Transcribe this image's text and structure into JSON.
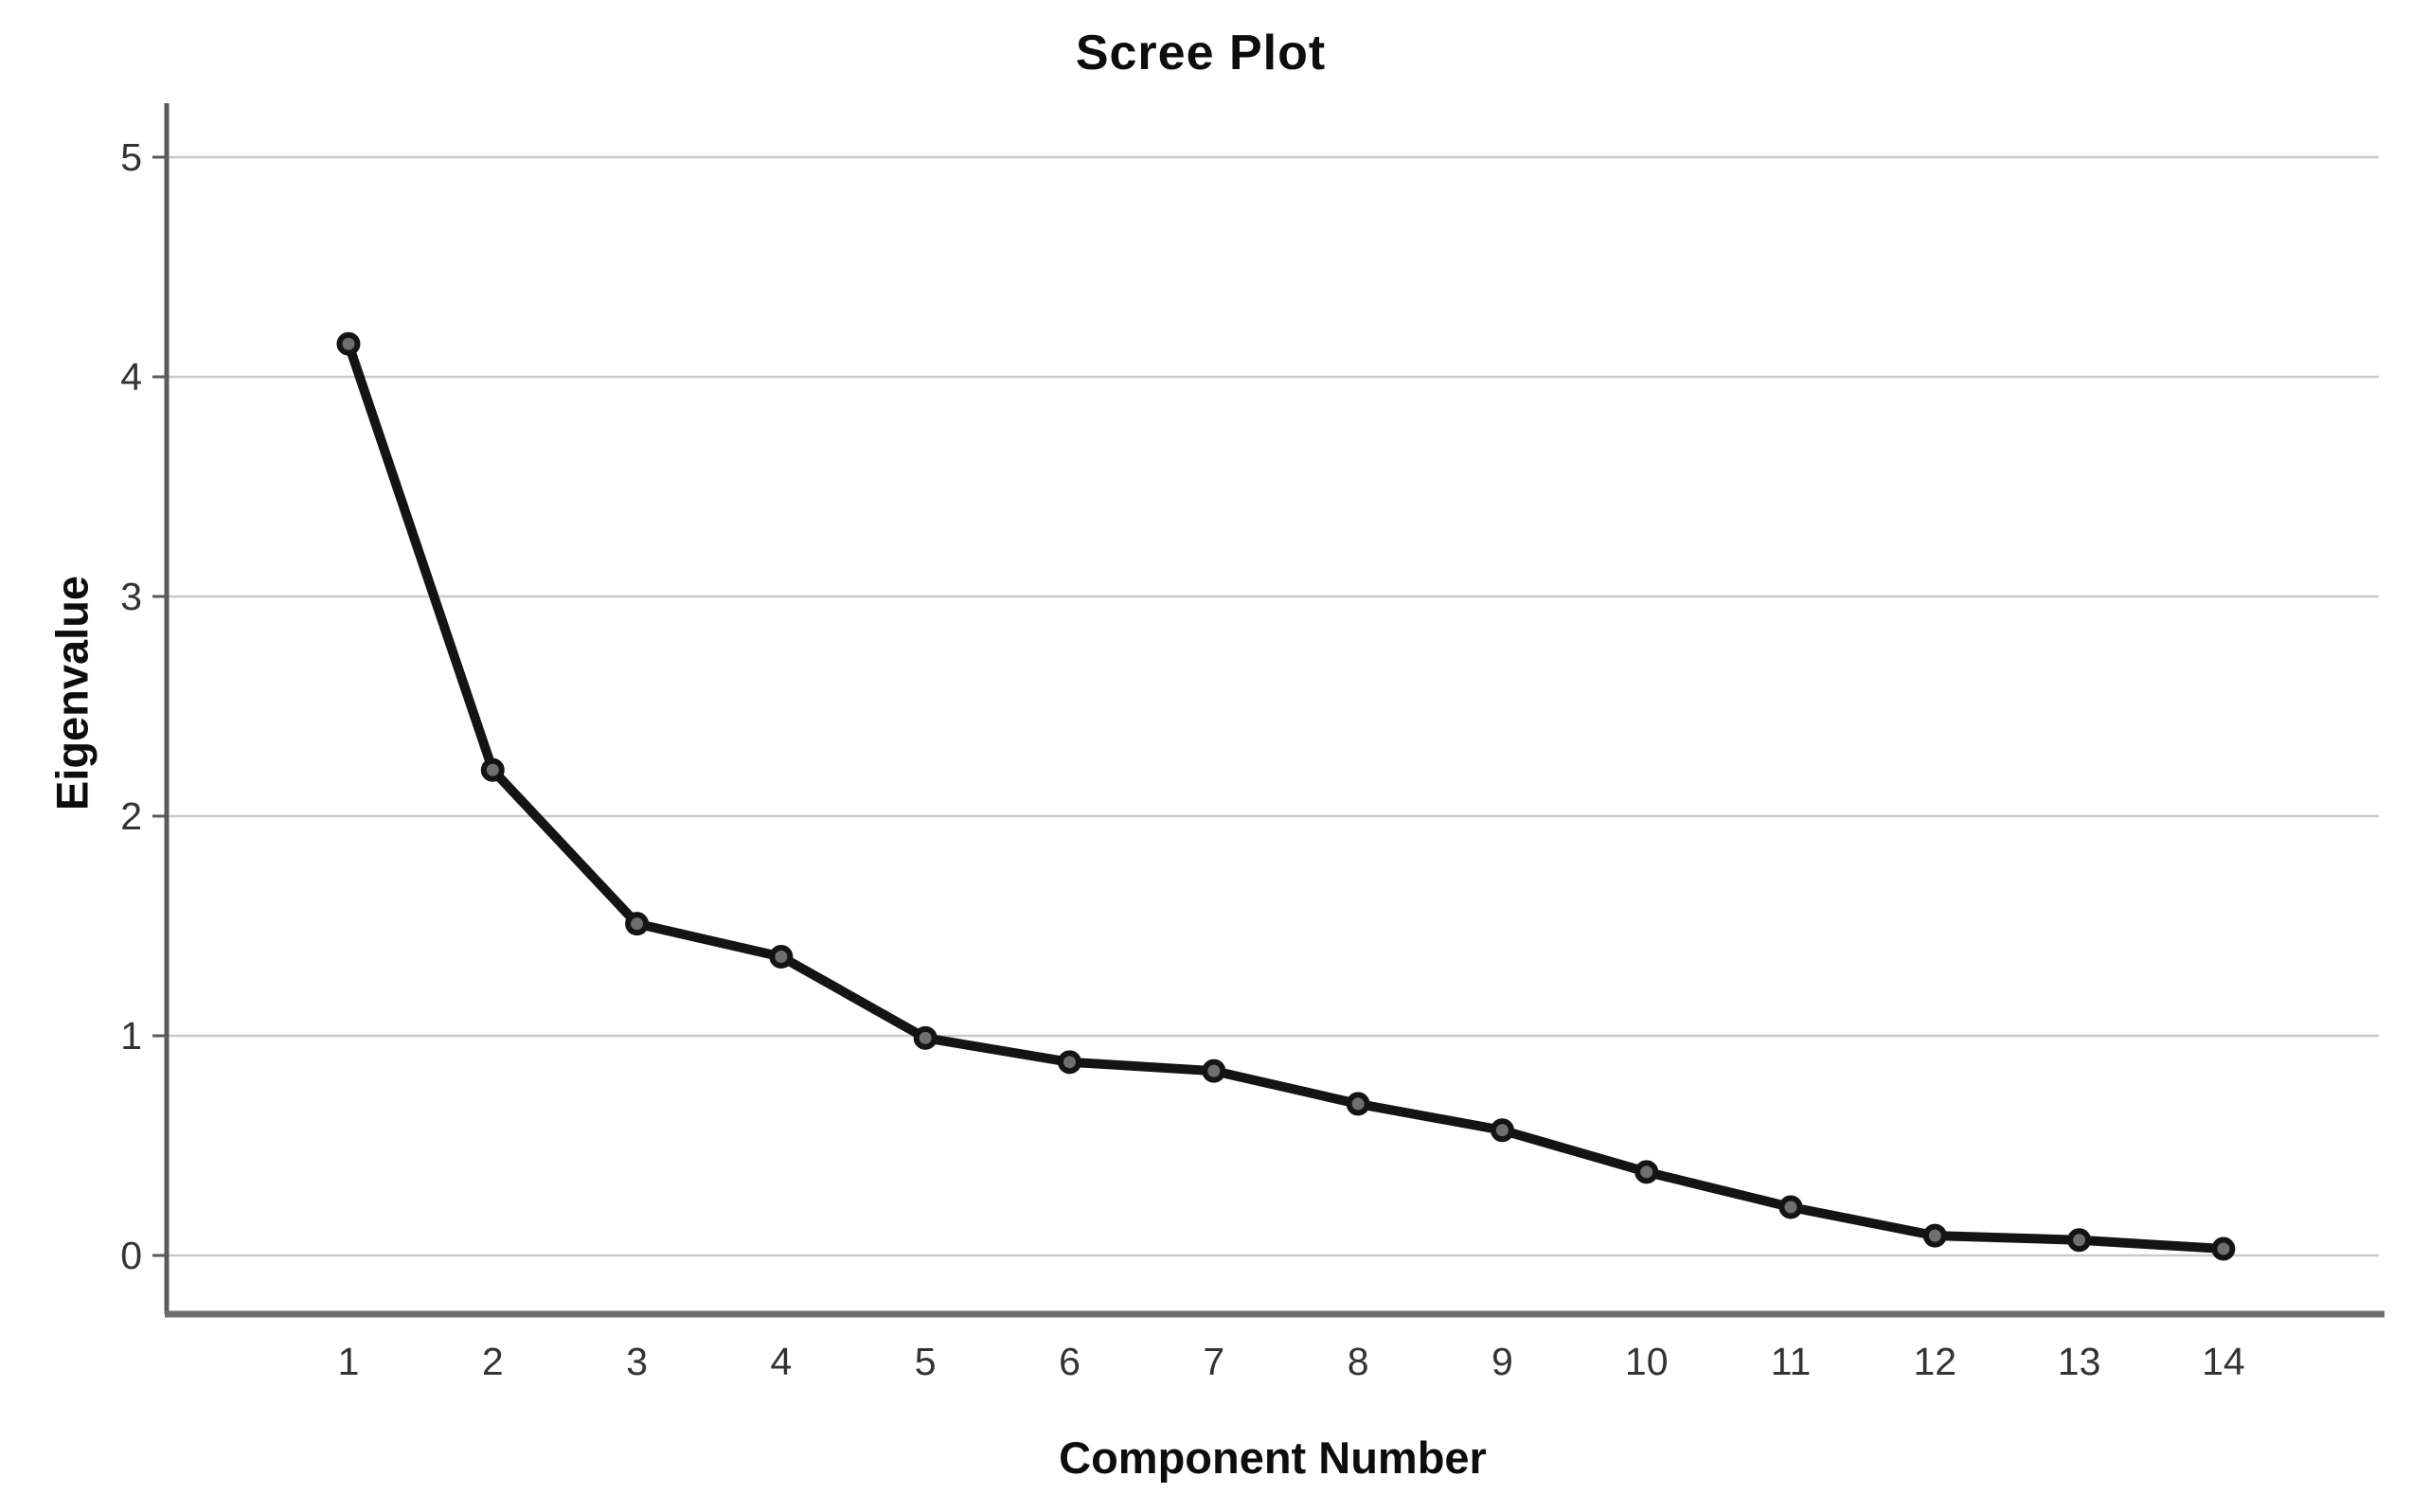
{
  "chart_data": {
    "type": "line",
    "title": "Scree Plot",
    "xlabel": "Component Number",
    "ylabel": "Eigenvalue",
    "categories": [
      1,
      2,
      3,
      4,
      5,
      6,
      7,
      8,
      9,
      10,
      11,
      12,
      13,
      14
    ],
    "series": [
      {
        "name": "Eigenvalue",
        "values": [
          4.15,
          2.21,
          1.51,
          1.36,
          0.99,
          0.88,
          0.84,
          0.69,
          0.57,
          0.38,
          0.22,
          0.09,
          0.07,
          0.03
        ]
      }
    ],
    "ylim": [
      0,
      5
    ],
    "yticks": [
      0,
      1,
      2,
      3,
      4,
      5
    ],
    "grid": "horizontal",
    "legend": "none",
    "colors": {
      "line": "#141414",
      "marker_fill": "#6f6f6f",
      "marker_stroke": "#141414",
      "grid_line": "#c9c9c9",
      "y_axis_line": "#5a5a5a",
      "x_axis_line": "#6e6e6e",
      "tick_label": "#333333",
      "title_text": "#0d0d0d",
      "background": "#ffffff"
    }
  }
}
